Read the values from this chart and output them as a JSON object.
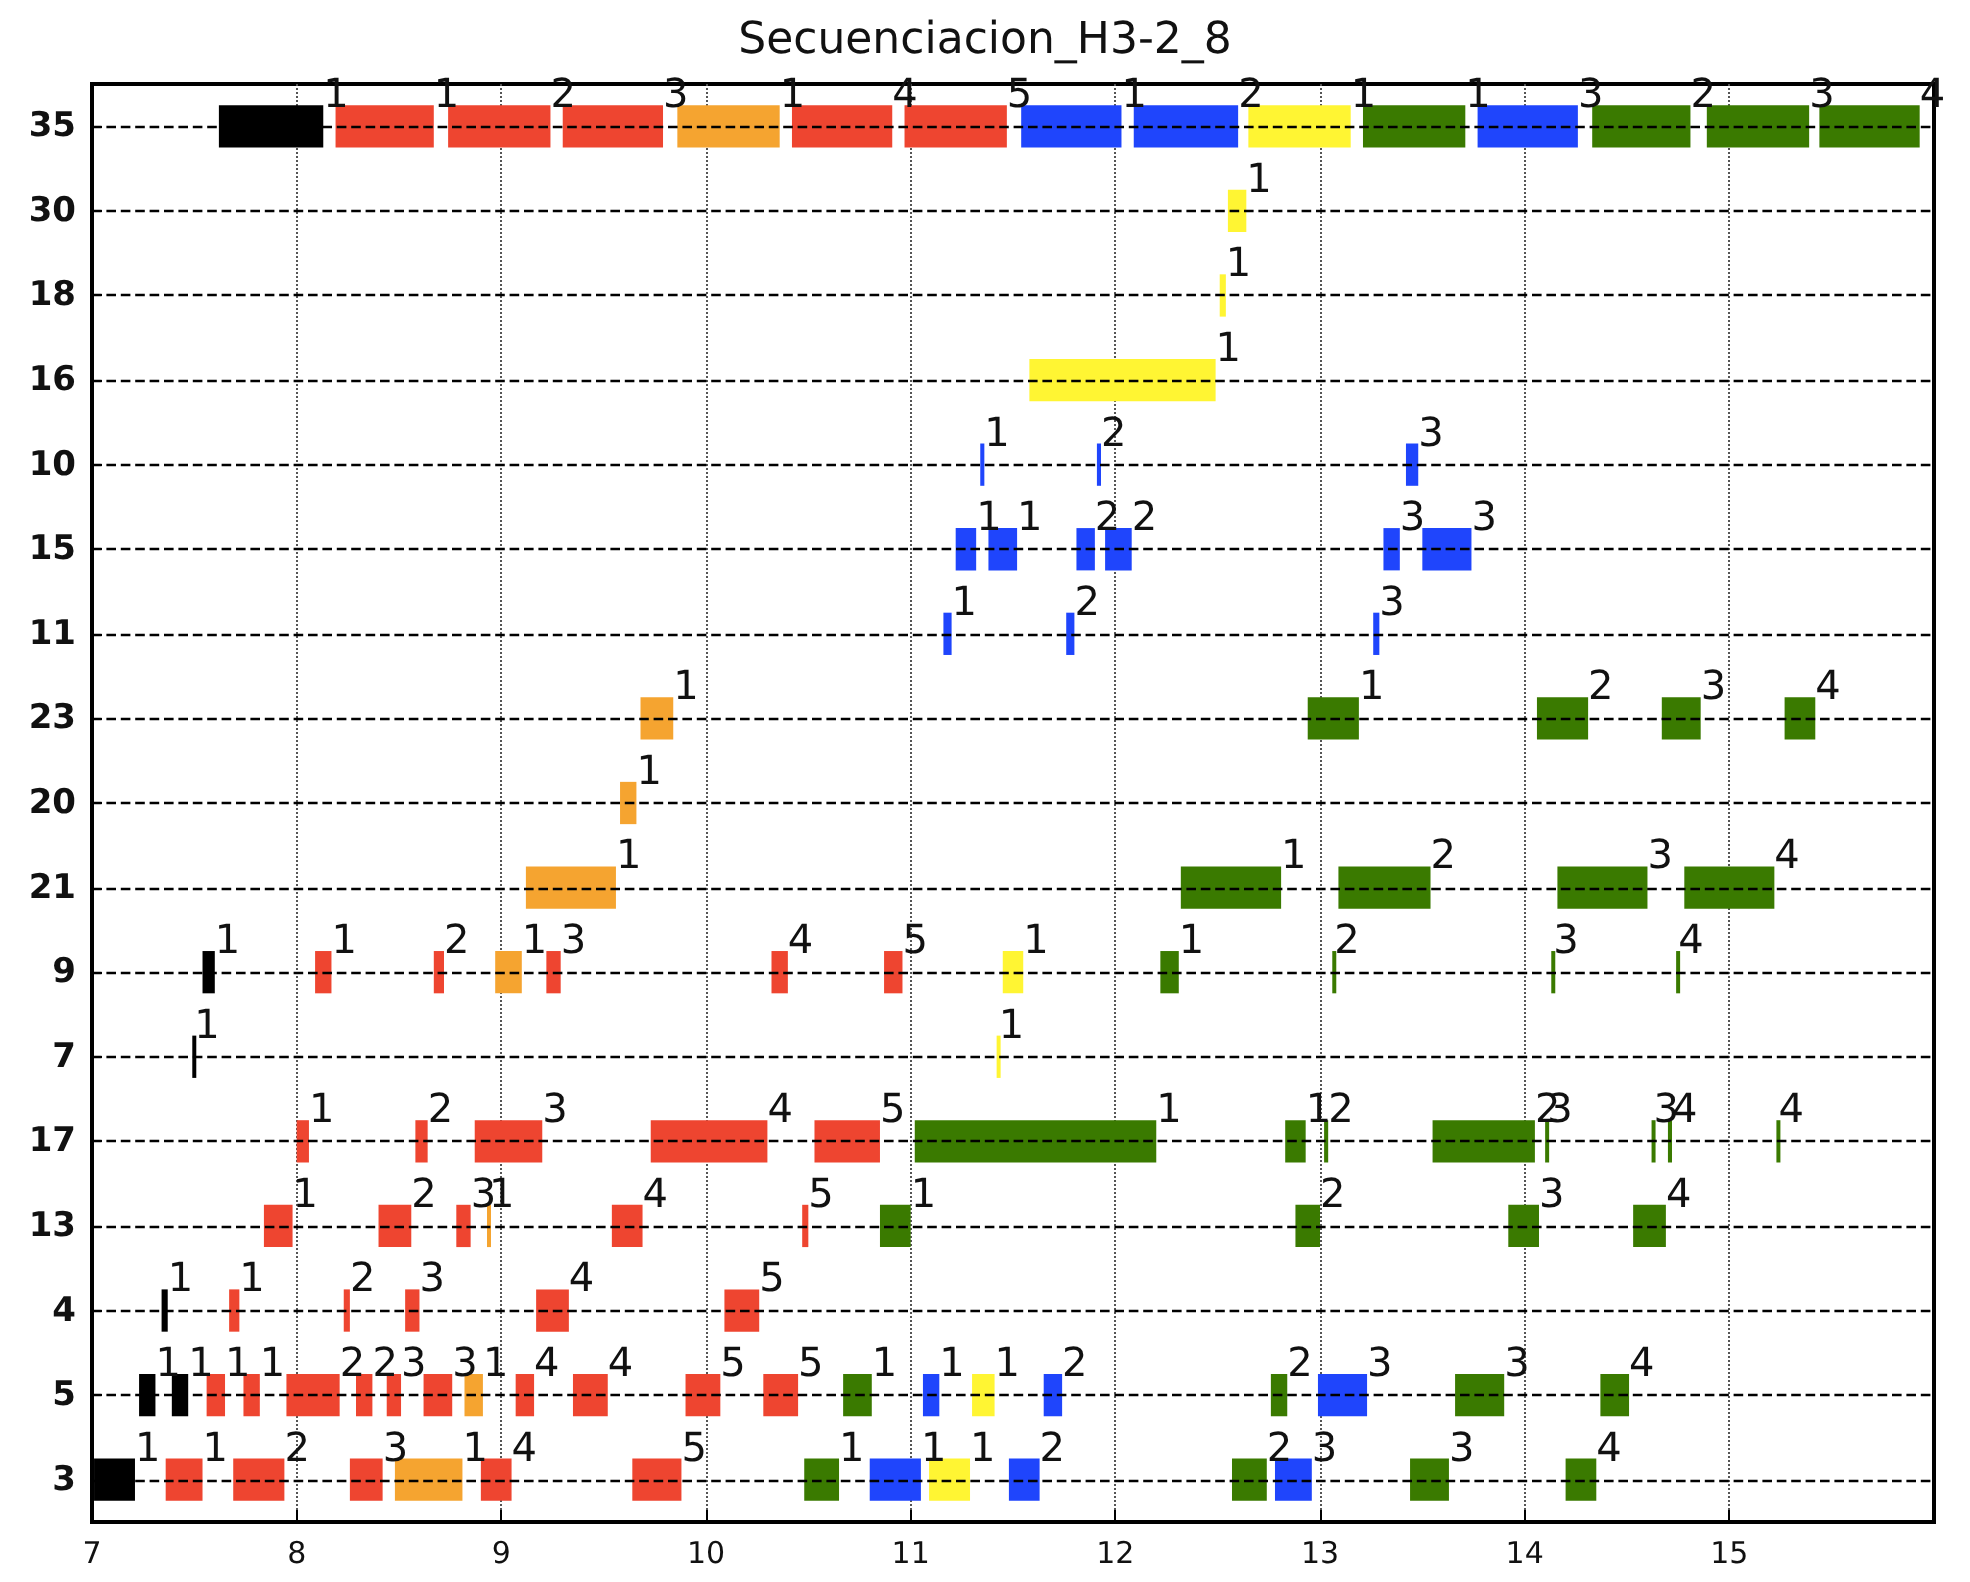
{
  "chart_data": {
    "type": "bar",
    "orientation": "horizontal",
    "title": "Secuenciacion_H3-2_8",
    "categories": [
      "35",
      "30",
      "18",
      "16",
      "10",
      "15",
      "11",
      "23",
      "20",
      "21",
      "9",
      "7",
      "17",
      "13",
      "4",
      "5",
      "3"
    ],
    "xlim": [
      7,
      16
    ],
    "xticks": [
      7,
      8,
      9,
      10,
      11,
      12,
      13,
      14,
      15
    ],
    "grid": true,
    "line_style": "dashed",
    "series": [
      {
        "color": "#000000",
        "base": [
          7.62,
          null,
          null,
          null,
          null,
          null,
          null,
          null,
          null,
          null,
          7.54,
          7.49,
          null,
          null,
          7.34,
          7.23,
          7.01
        ],
        "values": [
          0.51,
          null,
          null,
          null,
          null,
          null,
          null,
          null,
          null,
          null,
          0.06,
          0.01,
          null,
          null,
          0.03,
          0.08,
          0.2
        ]
      },
      {
        "color": "#000000",
        "base": [
          null,
          null,
          null,
          null,
          null,
          null,
          null,
          null,
          null,
          null,
          null,
          null,
          null,
          null,
          null,
          7.39,
          null
        ],
        "values": [
          null,
          null,
          null,
          null,
          null,
          null,
          null,
          null,
          null,
          null,
          null,
          null,
          null,
          null,
          null,
          0.08,
          null
        ]
      },
      {
        "color": "#ee4530",
        "base": [
          8.19,
          null,
          null,
          null,
          null,
          null,
          null,
          null,
          null,
          null,
          8.09,
          null,
          8.0,
          7.84,
          7.67,
          7.56,
          7.36
        ],
        "values": [
          0.48,
          null,
          null,
          null,
          null,
          null,
          null,
          null,
          null,
          null,
          0.08,
          null,
          0.06,
          0.14,
          0.05,
          0.09,
          0.18
        ]
      },
      {
        "color": "#ee4530",
        "base": [
          8.74,
          null,
          null,
          null,
          null,
          null,
          null,
          null,
          null,
          null,
          8.67,
          null,
          8.58,
          8.4,
          8.23,
          7.74,
          7.69
        ],
        "values": [
          0.5,
          null,
          null,
          null,
          null,
          null,
          null,
          null,
          null,
          null,
          0.05,
          null,
          0.06,
          0.16,
          0.03,
          0.08,
          0.25
        ]
      },
      {
        "color": "#ee4530",
        "base": [
          9.3,
          null,
          null,
          null,
          null,
          null,
          null,
          null,
          null,
          null,
          9.22,
          null,
          8.87,
          8.78,
          8.53,
          7.95,
          8.26
        ],
        "values": [
          0.49,
          null,
          null,
          null,
          null,
          null,
          null,
          null,
          null,
          null,
          0.07,
          null,
          0.33,
          0.07,
          0.07,
          0.26,
          0.16
        ]
      },
      {
        "color": "#ee4530",
        "base": [
          10.42,
          null,
          null,
          null,
          null,
          null,
          null,
          null,
          null,
          null,
          10.32,
          null,
          9.73,
          9.54,
          9.17,
          8.29,
          8.9
        ],
        "values": [
          0.49,
          null,
          null,
          null,
          null,
          null,
          null,
          null,
          null,
          null,
          0.08,
          null,
          0.57,
          0.15,
          0.16,
          0.08,
          0.15
        ]
      },
      {
        "color": "#ee4530",
        "base": [
          10.97,
          null,
          null,
          null,
          null,
          null,
          null,
          null,
          null,
          null,
          10.87,
          null,
          10.53,
          10.47,
          10.09,
          8.44,
          9.64
        ],
        "values": [
          0.5,
          null,
          null,
          null,
          null,
          null,
          null,
          null,
          null,
          null,
          0.09,
          null,
          0.32,
          0.03,
          0.17,
          0.07,
          0.24
        ]
      },
      {
        "color": "#ee4530",
        "base": [
          null,
          null,
          null,
          null,
          null,
          null,
          null,
          null,
          null,
          null,
          null,
          null,
          null,
          null,
          null,
          8.62,
          null
        ],
        "values": [
          null,
          null,
          null,
          null,
          null,
          null,
          null,
          null,
          null,
          null,
          null,
          null,
          null,
          null,
          null,
          0.14,
          null
        ]
      },
      {
        "color": "#ee4530",
        "base": [
          null,
          null,
          null,
          null,
          null,
          null,
          null,
          null,
          null,
          null,
          null,
          null,
          null,
          null,
          null,
          9.07,
          null
        ],
        "values": [
          null,
          null,
          null,
          null,
          null,
          null,
          null,
          null,
          null,
          null,
          null,
          null,
          null,
          null,
          null,
          0.09,
          null
        ]
      },
      {
        "color": "#ee4530",
        "base": [
          null,
          null,
          null,
          null,
          null,
          null,
          null,
          null,
          null,
          null,
          null,
          null,
          null,
          null,
          null,
          9.35,
          null
        ],
        "values": [
          null,
          null,
          null,
          null,
          null,
          null,
          null,
          null,
          null,
          null,
          null,
          null,
          null,
          null,
          null,
          0.17,
          null
        ]
      },
      {
        "color": "#ee4530",
        "base": [
          null,
          null,
          null,
          null,
          null,
          null,
          null,
          null,
          null,
          null,
          null,
          null,
          null,
          null,
          null,
          9.9,
          null
        ],
        "values": [
          null,
          null,
          null,
          null,
          null,
          null,
          null,
          null,
          null,
          null,
          null,
          null,
          null,
          null,
          null,
          0.17,
          null
        ]
      },
      {
        "color": "#ee4530",
        "base": [
          null,
          null,
          null,
          null,
          null,
          null,
          null,
          null,
          null,
          null,
          null,
          null,
          null,
          null,
          null,
          10.28,
          null
        ],
        "values": [
          null,
          null,
          null,
          null,
          null,
          null,
          null,
          null,
          null,
          null,
          null,
          null,
          null,
          null,
          null,
          0.17,
          null
        ]
      },
      {
        "color": "#f5a430",
        "base": [
          9.86,
          null,
          null,
          null,
          null,
          null,
          null,
          9.68,
          9.58,
          9.12,
          8.97,
          null,
          null,
          8.93,
          null,
          8.82,
          8.48
        ],
        "values": [
          0.5,
          null,
          null,
          null,
          null,
          null,
          null,
          0.16,
          0.08,
          0.44,
          0.13,
          null,
          null,
          0.01,
          null,
          0.09,
          0.33
        ]
      },
      {
        "color": "#1f45fc",
        "base": [
          11.54,
          null,
          null,
          null,
          11.34,
          11.22,
          11.16,
          null,
          null,
          null,
          null,
          null,
          null,
          null,
          null,
          11.06,
          10.8
        ],
        "values": [
          0.49,
          null,
          null,
          null,
          0.02,
          0.1,
          0.04,
          null,
          null,
          null,
          null,
          null,
          null,
          null,
          null,
          0.08,
          0.25
        ]
      },
      {
        "color": "#1f45fc",
        "base": [
          12.09,
          null,
          null,
          null,
          11.91,
          11.38,
          11.76,
          null,
          null,
          null,
          null,
          null,
          null,
          null,
          null,
          11.65,
          11.48
        ],
        "values": [
          0.51,
          null,
          null,
          null,
          0.02,
          0.14,
          0.04,
          null,
          null,
          null,
          null,
          null,
          null,
          null,
          null,
          0.09,
          0.15
        ]
      },
      {
        "color": "#1f45fc",
        "base": [
          13.77,
          null,
          null,
          null,
          13.42,
          11.81,
          13.26,
          null,
          null,
          null,
          null,
          null,
          null,
          null,
          null,
          12.99,
          12.78
        ],
        "values": [
          0.49,
          null,
          null,
          null,
          0.06,
          0.09,
          0.03,
          null,
          null,
          null,
          null,
          null,
          null,
          null,
          null,
          0.24,
          0.18
        ]
      },
      {
        "color": "#1f45fc",
        "base": [
          null,
          null,
          null,
          null,
          null,
          11.95,
          null,
          null,
          null,
          null,
          null,
          null,
          null,
          null,
          null,
          null,
          null
        ],
        "values": [
          null,
          null,
          null,
          null,
          null,
          0.13,
          null,
          null,
          null,
          null,
          null,
          null,
          null,
          null,
          null,
          null,
          null
        ]
      },
      {
        "color": "#1f45fc",
        "base": [
          null,
          null,
          null,
          null,
          null,
          13.31,
          null,
          null,
          null,
          null,
          null,
          null,
          null,
          null,
          null,
          null,
          null
        ],
        "values": [
          null,
          null,
          null,
          null,
          null,
          0.08,
          null,
          null,
          null,
          null,
          null,
          null,
          null,
          null,
          null,
          null,
          null
        ]
      },
      {
        "color": "#1f45fc",
        "base": [
          null,
          null,
          null,
          null,
          null,
          13.5,
          null,
          null,
          null,
          null,
          null,
          null,
          null,
          null,
          null,
          null,
          null
        ],
        "values": [
          null,
          null,
          null,
          null,
          null,
          0.24,
          null,
          null,
          null,
          null,
          null,
          null,
          null,
          null,
          null,
          null,
          null
        ]
      },
      {
        "color": "#fff533",
        "base": [
          12.65,
          12.55,
          12.51,
          11.58,
          null,
          null,
          null,
          null,
          null,
          null,
          11.45,
          11.42,
          null,
          null,
          null,
          11.3,
          11.09
        ],
        "values": [
          0.5,
          0.09,
          0.03,
          0.91,
          null,
          null,
          null,
          null,
          null,
          null,
          0.1,
          0.01,
          null,
          null,
          null,
          0.11,
          0.2
        ]
      },
      {
        "color": "#3a7a00",
        "base": [
          13.21,
          null,
          null,
          null,
          null,
          null,
          null,
          12.94,
          null,
          12.32,
          12.22,
          null,
          11.02,
          10.85,
          null,
          10.67,
          10.48
        ],
        "values": [
          0.5,
          null,
          null,
          null,
          null,
          null,
          null,
          0.25,
          null,
          0.49,
          0.09,
          null,
          1.18,
          0.15,
          null,
          0.14,
          0.17
        ]
      },
      {
        "color": "#3a7a00",
        "base": [
          14.33,
          null,
          null,
          null,
          null,
          null,
          null,
          14.06,
          null,
          13.09,
          13.06,
          null,
          12.83,
          12.88,
          null,
          12.76,
          12.57
        ],
        "values": [
          0.48,
          null,
          null,
          null,
          null,
          null,
          null,
          0.25,
          null,
          0.45,
          0.01,
          null,
          0.1,
          0.12,
          null,
          0.08,
          0.17
        ]
      },
      {
        "color": "#3a7a00",
        "base": [
          14.89,
          null,
          null,
          null,
          null,
          null,
          null,
          14.67,
          null,
          14.16,
          14.13,
          null,
          13.02,
          13.92,
          null,
          13.66,
          13.44
        ],
        "values": [
          0.5,
          null,
          null,
          null,
          null,
          null,
          null,
          0.19,
          null,
          0.44,
          0.01,
          null,
          0.02,
          0.15,
          null,
          0.24,
          0.19
        ]
      },
      {
        "color": "#3a7a00",
        "base": [
          15.44,
          null,
          null,
          null,
          null,
          null,
          null,
          15.27,
          null,
          14.78,
          14.74,
          null,
          13.55,
          14.53,
          null,
          14.37,
          14.2
        ],
        "values": [
          0.49,
          null,
          null,
          null,
          null,
          null,
          null,
          0.15,
          null,
          0.44,
          0.01,
          null,
          0.5,
          0.16,
          null,
          0.14,
          0.15
        ]
      },
      {
        "color": "#3a7a00",
        "base": [
          null,
          null,
          null,
          null,
          null,
          null,
          null,
          null,
          null,
          null,
          null,
          null,
          14.1,
          null,
          null,
          null,
          null
        ],
        "values": [
          null,
          null,
          null,
          null,
          null,
          null,
          null,
          null,
          null,
          null,
          null,
          null,
          0.01,
          null,
          null,
          null,
          null
        ]
      },
      {
        "color": "#3a7a00",
        "base": [
          null,
          null,
          null,
          null,
          null,
          null,
          null,
          null,
          null,
          null,
          null,
          null,
          14.62,
          null,
          null,
          null,
          null
        ],
        "values": [
          null,
          null,
          null,
          null,
          null,
          null,
          null,
          null,
          null,
          null,
          null,
          null,
          0.01,
          null,
          null,
          null,
          null
        ]
      },
      {
        "color": "#3a7a00",
        "base": [
          null,
          null,
          null,
          null,
          null,
          null,
          null,
          null,
          null,
          null,
          null,
          null,
          14.7,
          null,
          null,
          null,
          null
        ],
        "values": [
          null,
          null,
          null,
          null,
          null,
          null,
          null,
          null,
          null,
          null,
          null,
          null,
          0.02,
          null,
          null,
          null,
          null
        ]
      },
      {
        "color": "#3a7a00",
        "base": [
          null,
          null,
          null,
          null,
          null,
          null,
          null,
          null,
          null,
          null,
          null,
          null,
          15.23,
          null,
          null,
          null,
          null
        ],
        "values": [
          null,
          null,
          null,
          null,
          null,
          null,
          null,
          null,
          null,
          null,
          null,
          null,
          0.01,
          null,
          null,
          null,
          null
        ]
      }
    ],
    "annotations": [
      {
        "text": "1",
        "x": 8.13,
        "y": "35"
      },
      {
        "text": "1",
        "x": 7.6,
        "y": "9"
      },
      {
        "text": "1",
        "x": 7.5,
        "y": "7"
      },
      {
        "text": "1",
        "x": 7.37,
        "y": "4"
      },
      {
        "text": "1",
        "x": 7.31,
        "y": "5"
      },
      {
        "text": "1",
        "x": 7.47,
        "y": "5"
      },
      {
        "text": "1",
        "x": 7.21,
        "y": "3"
      },
      {
        "text": "1",
        "x": 8.67,
        "y": "35"
      },
      {
        "text": "2",
        "x": 9.24,
        "y": "35"
      },
      {
        "text": "3",
        "x": 9.79,
        "y": "35"
      },
      {
        "text": "4",
        "x": 10.91,
        "y": "35"
      },
      {
        "text": "5",
        "x": 11.47,
        "y": "35"
      },
      {
        "text": "1",
        "x": 8.17,
        "y": "9"
      },
      {
        "text": "2",
        "x": 8.72,
        "y": "9"
      },
      {
        "text": "3",
        "x": 9.29,
        "y": "9"
      },
      {
        "text": "4",
        "x": 10.4,
        "y": "9"
      },
      {
        "text": "5",
        "x": 10.96,
        "y": "9"
      },
      {
        "text": "1",
        "x": 8.06,
        "y": "17"
      },
      {
        "text": "2",
        "x": 8.64,
        "y": "17"
      },
      {
        "text": "3",
        "x": 9.2,
        "y": "17"
      },
      {
        "text": "4",
        "x": 10.3,
        "y": "17"
      },
      {
        "text": "5",
        "x": 10.85,
        "y": "17"
      },
      {
        "text": "1",
        "x": 7.98,
        "y": "13"
      },
      {
        "text": "2",
        "x": 8.56,
        "y": "13"
      },
      {
        "text": "3",
        "x": 8.85,
        "y": "13"
      },
      {
        "text": "4",
        "x": 9.69,
        "y": "13"
      },
      {
        "text": "5",
        "x": 10.5,
        "y": "13"
      },
      {
        "text": "1",
        "x": 7.72,
        "y": "4"
      },
      {
        "text": "2",
        "x": 8.26,
        "y": "4"
      },
      {
        "text": "3",
        "x": 8.6,
        "y": "4"
      },
      {
        "text": "4",
        "x": 9.33,
        "y": "4"
      },
      {
        "text": "5",
        "x": 10.26,
        "y": "4"
      },
      {
        "text": "1",
        "x": 7.65,
        "y": "5"
      },
      {
        "text": "1",
        "x": 7.82,
        "y": "5"
      },
      {
        "text": "2",
        "x": 8.21,
        "y": "5"
      },
      {
        "text": "2",
        "x": 8.37,
        "y": "5"
      },
      {
        "text": "3",
        "x": 8.51,
        "y": "5"
      },
      {
        "text": "3",
        "x": 8.76,
        "y": "5"
      },
      {
        "text": "4",
        "x": 9.16,
        "y": "5"
      },
      {
        "text": "4",
        "x": 9.52,
        "y": "5"
      },
      {
        "text": "5",
        "x": 10.07,
        "y": "5"
      },
      {
        "text": "5",
        "x": 10.45,
        "y": "5"
      },
      {
        "text": "1",
        "x": 7.54,
        "y": "3"
      },
      {
        "text": "2",
        "x": 7.94,
        "y": "3"
      },
      {
        "text": "3",
        "x": 8.42,
        "y": "3"
      },
      {
        "text": "4",
        "x": 9.05,
        "y": "3"
      },
      {
        "text": "5",
        "x": 9.88,
        "y": "3"
      },
      {
        "text": "1",
        "x": 10.36,
        "y": "35"
      },
      {
        "text": "1",
        "x": 9.84,
        "y": "23"
      },
      {
        "text": "1",
        "x": 9.66,
        "y": "20"
      },
      {
        "text": "1",
        "x": 9.56,
        "y": "21"
      },
      {
        "text": "1",
        "x": 9.1,
        "y": "9"
      },
      {
        "text": "1",
        "x": 8.94,
        "y": "13"
      },
      {
        "text": "1",
        "x": 8.91,
        "y": "5"
      },
      {
        "text": "1",
        "x": 8.81,
        "y": "3"
      },
      {
        "text": "1",
        "x": 12.03,
        "y": "35"
      },
      {
        "text": "2",
        "x": 12.6,
        "y": "35"
      },
      {
        "text": "3",
        "x": 14.26,
        "y": "35"
      },
      {
        "text": "1",
        "x": 11.36,
        "y": "10"
      },
      {
        "text": "2",
        "x": 11.93,
        "y": "10"
      },
      {
        "text": "3",
        "x": 13.48,
        "y": "10"
      },
      {
        "text": "1",
        "x": 11.32,
        "y": "15"
      },
      {
        "text": "1",
        "x": 11.52,
        "y": "15"
      },
      {
        "text": "2",
        "x": 11.9,
        "y": "15"
      },
      {
        "text": "2",
        "x": 12.08,
        "y": "15"
      },
      {
        "text": "3",
        "x": 13.39,
        "y": "15"
      },
      {
        "text": "3",
        "x": 13.74,
        "y": "15"
      },
      {
        "text": "1",
        "x": 11.2,
        "y": "11"
      },
      {
        "text": "2",
        "x": 11.8,
        "y": "11"
      },
      {
        "text": "3",
        "x": 13.29,
        "y": "11"
      },
      {
        "text": "1",
        "x": 11.14,
        "y": "5"
      },
      {
        "text": "2",
        "x": 11.74,
        "y": "5"
      },
      {
        "text": "3",
        "x": 13.23,
        "y": "5"
      },
      {
        "text": "1",
        "x": 11.05,
        "y": "3"
      },
      {
        "text": "2",
        "x": 11.63,
        "y": "3"
      },
      {
        "text": "3",
        "x": 12.96,
        "y": "3"
      },
      {
        "text": "1",
        "x": 13.15,
        "y": "35"
      },
      {
        "text": "1",
        "x": 12.64,
        "y": "30"
      },
      {
        "text": "1",
        "x": 12.54,
        "y": "18"
      },
      {
        "text": "1",
        "x": 12.49,
        "y": "16"
      },
      {
        "text": "1",
        "x": 11.55,
        "y": "9"
      },
      {
        "text": "1",
        "x": 11.43,
        "y": "7"
      },
      {
        "text": "1",
        "x": 11.41,
        "y": "5"
      },
      {
        "text": "1",
        "x": 11.29,
        "y": "3"
      },
      {
        "text": "1",
        "x": 13.71,
        "y": "35"
      },
      {
        "text": "2",
        "x": 14.81,
        "y": "35"
      },
      {
        "text": "3",
        "x": 15.39,
        "y": "35"
      },
      {
        "text": "4",
        "x": 15.93,
        "y": "35"
      },
      {
        "text": "1",
        "x": 13.19,
        "y": "23"
      },
      {
        "text": "2",
        "x": 14.31,
        "y": "23"
      },
      {
        "text": "3",
        "x": 14.86,
        "y": "23"
      },
      {
        "text": "4",
        "x": 15.42,
        "y": "23"
      },
      {
        "text": "1",
        "x": 12.81,
        "y": "21"
      },
      {
        "text": "2",
        "x": 13.54,
        "y": "21"
      },
      {
        "text": "3",
        "x": 14.6,
        "y": "21"
      },
      {
        "text": "4",
        "x": 15.22,
        "y": "21"
      },
      {
        "text": "1",
        "x": 12.31,
        "y": "9"
      },
      {
        "text": "2",
        "x": 13.07,
        "y": "9"
      },
      {
        "text": "3",
        "x": 14.14,
        "y": "9"
      },
      {
        "text": "4",
        "x": 14.75,
        "y": "9"
      },
      {
        "text": "1",
        "x": 12.2,
        "y": "17"
      },
      {
        "text": "1",
        "x": 12.93,
        "y": "17"
      },
      {
        "text": "2",
        "x": 13.04,
        "y": "17"
      },
      {
        "text": "2",
        "x": 14.05,
        "y": "17"
      },
      {
        "text": "3",
        "x": 14.11,
        "y": "17"
      },
      {
        "text": "3",
        "x": 14.63,
        "y": "17"
      },
      {
        "text": "4",
        "x": 14.72,
        "y": "17"
      },
      {
        "text": "4",
        "x": 15.24,
        "y": "17"
      },
      {
        "text": "1",
        "x": 11.0,
        "y": "13"
      },
      {
        "text": "2",
        "x": 13.0,
        "y": "13"
      },
      {
        "text": "3",
        "x": 14.07,
        "y": "13"
      },
      {
        "text": "4",
        "x": 14.69,
        "y": "13"
      },
      {
        "text": "1",
        "x": 10.81,
        "y": "5"
      },
      {
        "text": "2",
        "x": 12.84,
        "y": "5"
      },
      {
        "text": "3",
        "x": 13.9,
        "y": "5"
      },
      {
        "text": "4",
        "x": 14.51,
        "y": "5"
      },
      {
        "text": "1",
        "x": 10.65,
        "y": "3"
      },
      {
        "text": "2",
        "x": 12.74,
        "y": "3"
      },
      {
        "text": "3",
        "x": 13.63,
        "y": "3"
      },
      {
        "text": "4",
        "x": 14.35,
        "y": "3"
      }
    ]
  }
}
